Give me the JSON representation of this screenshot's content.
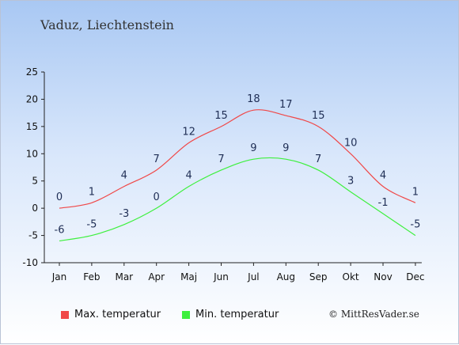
{
  "location": "Vaduz, Liechtenstein",
  "copyright": "© MittResVader.se",
  "colors": {
    "max": "#f04848",
    "min": "#3ef03e"
  },
  "chart_data": {
    "type": "line",
    "title": "",
    "xlabel": "",
    "ylabel": "",
    "ylim": [
      -10,
      25
    ],
    "yticks": [
      -10,
      -5,
      0,
      5,
      10,
      15,
      20,
      25
    ],
    "grid": false,
    "legend_position": "bottom",
    "categories": [
      "Jan",
      "Feb",
      "Mar",
      "Apr",
      "Maj",
      "Jun",
      "Jul",
      "Aug",
      "Sep",
      "Okt",
      "Nov",
      "Dec"
    ],
    "series": [
      {
        "name": "Max. temperatur",
        "values": [
          0,
          1,
          4,
          7,
          12,
          15,
          18,
          17,
          15,
          10,
          4,
          1
        ]
      },
      {
        "name": "Min. temperatur",
        "values": [
          -6,
          -5,
          -3,
          0,
          4,
          7,
          9,
          9,
          7,
          3,
          -1,
          -5
        ]
      }
    ]
  }
}
